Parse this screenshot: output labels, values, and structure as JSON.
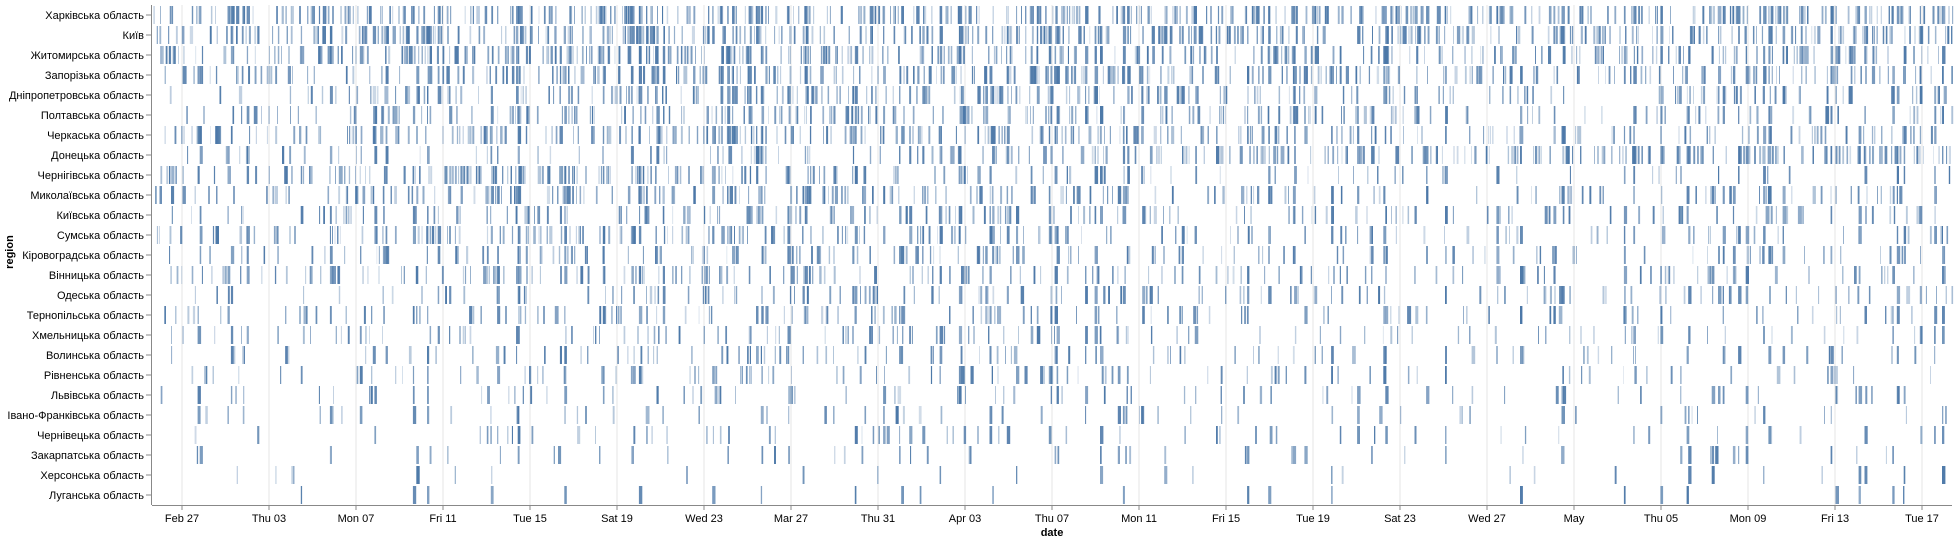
{
  "chart_data": {
    "type": "heatmap",
    "title": "",
    "xlabel": "date",
    "ylabel": "region",
    "grid": true,
    "color": "#4c78a8",
    "categories": [
      "Харківська область",
      "Київ",
      "Житомирська область",
      "Запорізька область",
      "Дніпропетровська область",
      "Полтавська область",
      "Черкаська область",
      "Донецька область",
      "Чернігівська область",
      "Миколаївська область",
      "Київська область",
      "Сумська область",
      "Кіровоградська область",
      "Вінницька область",
      "Одеська область",
      "Тернопільська область",
      "Хмельницька область",
      "Волинська область",
      "Рівненська область",
      "Львівська область",
      "Івано-Франківська область",
      "Чернівецька область",
      "Закарпатська область",
      "Херсонська область",
      "Луганська область"
    ],
    "x_ticks": [
      "Feb 27",
      "Thu 03",
      "Mon 07",
      "Fri 11",
      "Tue 15",
      "Sat 19",
      "Wed 23",
      "Mar 27",
      "Thu 31",
      "Apr 03",
      "Thu 07",
      "Mon 11",
      "Fri 15",
      "Tue 19",
      "Sat 23",
      "Wed 27",
      "May",
      "Thu 05",
      "Mon 09",
      "Fri 13",
      "Tue 17"
    ],
    "x_range": [
      "2022-02-25",
      "2022-05-20"
    ],
    "density": [
      [
        0.55,
        0.6,
        0.7,
        0.55,
        0.5,
        0.7,
        0.65,
        0.55,
        0.5,
        0.6
      ],
      [
        0.5,
        0.6,
        0.7,
        0.6,
        0.45,
        0.6,
        0.55,
        0.45,
        0.5,
        0.55
      ],
      [
        0.4,
        0.65,
        0.75,
        0.6,
        0.4,
        0.4,
        0.4,
        0.35,
        0.4,
        0.45
      ],
      [
        0.35,
        0.25,
        0.4,
        0.55,
        0.5,
        0.45,
        0.4,
        0.3,
        0.35,
        0.3
      ],
      [
        0.1,
        0.25,
        0.35,
        0.5,
        0.4,
        0.35,
        0.3,
        0.2,
        0.3,
        0.25
      ],
      [
        0.15,
        0.25,
        0.35,
        0.45,
        0.3,
        0.35,
        0.3,
        0.15,
        0.2,
        0.2
      ],
      [
        0.35,
        0.4,
        0.4,
        0.45,
        0.35,
        0.3,
        0.3,
        0.2,
        0.25,
        0.25
      ],
      [
        0.1,
        0.1,
        0.1,
        0.25,
        0.25,
        0.3,
        0.45,
        0.5,
        0.55,
        0.55
      ],
      [
        0.25,
        0.7,
        0.55,
        0.4,
        0.15,
        0.1,
        0.1,
        0.05,
        0.05,
        0.05
      ],
      [
        0.2,
        0.4,
        0.35,
        0.35,
        0.35,
        0.25,
        0.2,
        0.15,
        0.2,
        0.2
      ],
      [
        0.15,
        0.25,
        0.3,
        0.3,
        0.25,
        0.2,
        0.2,
        0.15,
        0.15,
        0.15
      ],
      [
        0.2,
        0.35,
        0.45,
        0.35,
        0.2,
        0.15,
        0.12,
        0.1,
        0.12,
        0.1
      ],
      [
        0.1,
        0.2,
        0.3,
        0.3,
        0.25,
        0.2,
        0.15,
        0.15,
        0.15,
        0.12
      ],
      [
        0.3,
        0.3,
        0.3,
        0.35,
        0.25,
        0.2,
        0.15,
        0.15,
        0.15,
        0.15
      ],
      [
        0.05,
        0.1,
        0.2,
        0.3,
        0.25,
        0.2,
        0.2,
        0.15,
        0.2,
        0.15
      ],
      [
        0.15,
        0.15,
        0.2,
        0.25,
        0.2,
        0.15,
        0.12,
        0.1,
        0.1,
        0.1
      ],
      [
        0.1,
        0.15,
        0.2,
        0.25,
        0.2,
        0.15,
        0.12,
        0.1,
        0.1,
        0.1
      ],
      [
        0.1,
        0.1,
        0.15,
        0.2,
        0.15,
        0.12,
        0.1,
        0.08,
        0.08,
        0.08
      ],
      [
        0.08,
        0.1,
        0.15,
        0.2,
        0.15,
        0.12,
        0.1,
        0.08,
        0.08,
        0.08
      ],
      [
        0.05,
        0.1,
        0.12,
        0.15,
        0.12,
        0.1,
        0.08,
        0.06,
        0.06,
        0.06
      ],
      [
        0.04,
        0.06,
        0.1,
        0.12,
        0.1,
        0.08,
        0.06,
        0.05,
        0.05,
        0.05
      ],
      [
        0.04,
        0.05,
        0.08,
        0.1,
        0.08,
        0.06,
        0.05,
        0.04,
        0.04,
        0.04
      ],
      [
        0.02,
        0.03,
        0.06,
        0.08,
        0.06,
        0.05,
        0.04,
        0.03,
        0.03,
        0.03
      ],
      [
        0.05,
        0.03,
        0.02,
        0.01,
        0.01,
        0.01,
        0.01,
        0.01,
        0.01,
        0.01
      ],
      [
        0.0,
        0.0,
        0.0,
        0.0,
        0.01,
        0.0,
        0.0,
        0.0,
        0.0,
        0.0
      ]
    ]
  }
}
